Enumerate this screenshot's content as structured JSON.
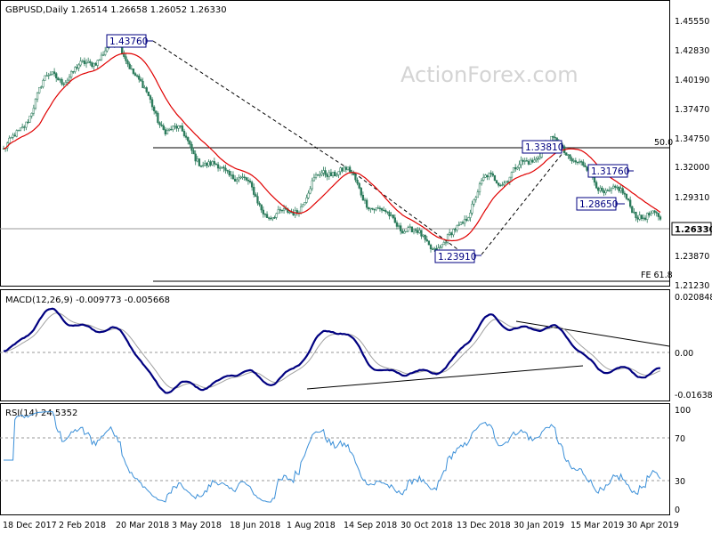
{
  "chart_data": [
    {
      "type": "candlestick",
      "title": "GBPUSD,Daily  1.26514 1.26658 1.26052 1.26330",
      "watermark": "ActionForex.com",
      "ylim": [
        1.2,
        1.48
      ],
      "y_ticks": [
        "1.45550",
        "1.42830",
        "1.40190",
        "1.37470",
        "1.34750",
        "1.32000",
        "1.29310",
        "1.26330",
        "1.23870",
        "1.21230"
      ],
      "current_price": "1.26330",
      "price_levels": [
        {
          "label": "1.43760",
          "value": 1.4376
        },
        {
          "label": "1.33810",
          "value": 1.3381
        },
        {
          "label": "1.31760",
          "value": 1.3176
        },
        {
          "label": "1.28650",
          "value": 1.2865
        },
        {
          "label": "1.23910",
          "value": 1.2391
        }
      ],
      "fib_levels": [
        {
          "label": "50.0",
          "value": 1.3383
        },
        {
          "label": "FE 61.8",
          "value": 1.2165
        }
      ],
      "ma_color": "#e00000",
      "candle_color": "#2a7a5a",
      "key_points": [
        {
          "date": "18 Dec 2017",
          "price": 1.336
        },
        {
          "date": "2 Feb 2018",
          "price": 1.41
        },
        {
          "date": "20 Mar 2018",
          "price": 1.4376
        },
        {
          "date": "3 May 2018",
          "price": 1.36
        },
        {
          "date": "18 Jun 2018",
          "price": 1.315
        },
        {
          "date": "1 Aug 2018",
          "price": 1.27
        },
        {
          "date": "14 Sep 2018",
          "price": 1.315
        },
        {
          "date": "30 Oct 2018",
          "price": 1.27
        },
        {
          "date": "13 Dec 2018",
          "price": 1.2391
        },
        {
          "date": "30 Jan 2019",
          "price": 1.31
        },
        {
          "date": "15 Mar 2019",
          "price": 1.3381
        },
        {
          "date": "30 Apr 2019",
          "price": 1.3
        },
        {
          "date": "end",
          "price": 1.2633
        }
      ]
    },
    {
      "type": "line",
      "title": "MACD(12,26,9) -0.009773 -0.005668",
      "y_ticks": [
        "0.020848",
        "0.00",
        "-0.016389"
      ],
      "ylim": [
        -0.0195,
        0.0235
      ],
      "line_color": "#000080",
      "signal_color": "#a0a0a0"
    },
    {
      "type": "line",
      "title": "RSI(14) 24.5352",
      "y_ticks": [
        "100",
        "70",
        "30",
        "0"
      ],
      "ylim": [
        0,
        100
      ],
      "levels": [
        70,
        30
      ],
      "line_color": "#3a8fd8"
    }
  ],
  "x_labels": [
    "18 Dec 2017",
    "2 Feb 2018",
    "20 Mar 2018",
    "3 May 2018",
    "18 Jun 2018",
    "1 Aug 2018",
    "14 Sep 2018",
    "30 Oct 2018",
    "13 Dec 2018",
    "30 Jan 2019",
    "15 Mar 2019",
    "30 Apr 2019"
  ]
}
